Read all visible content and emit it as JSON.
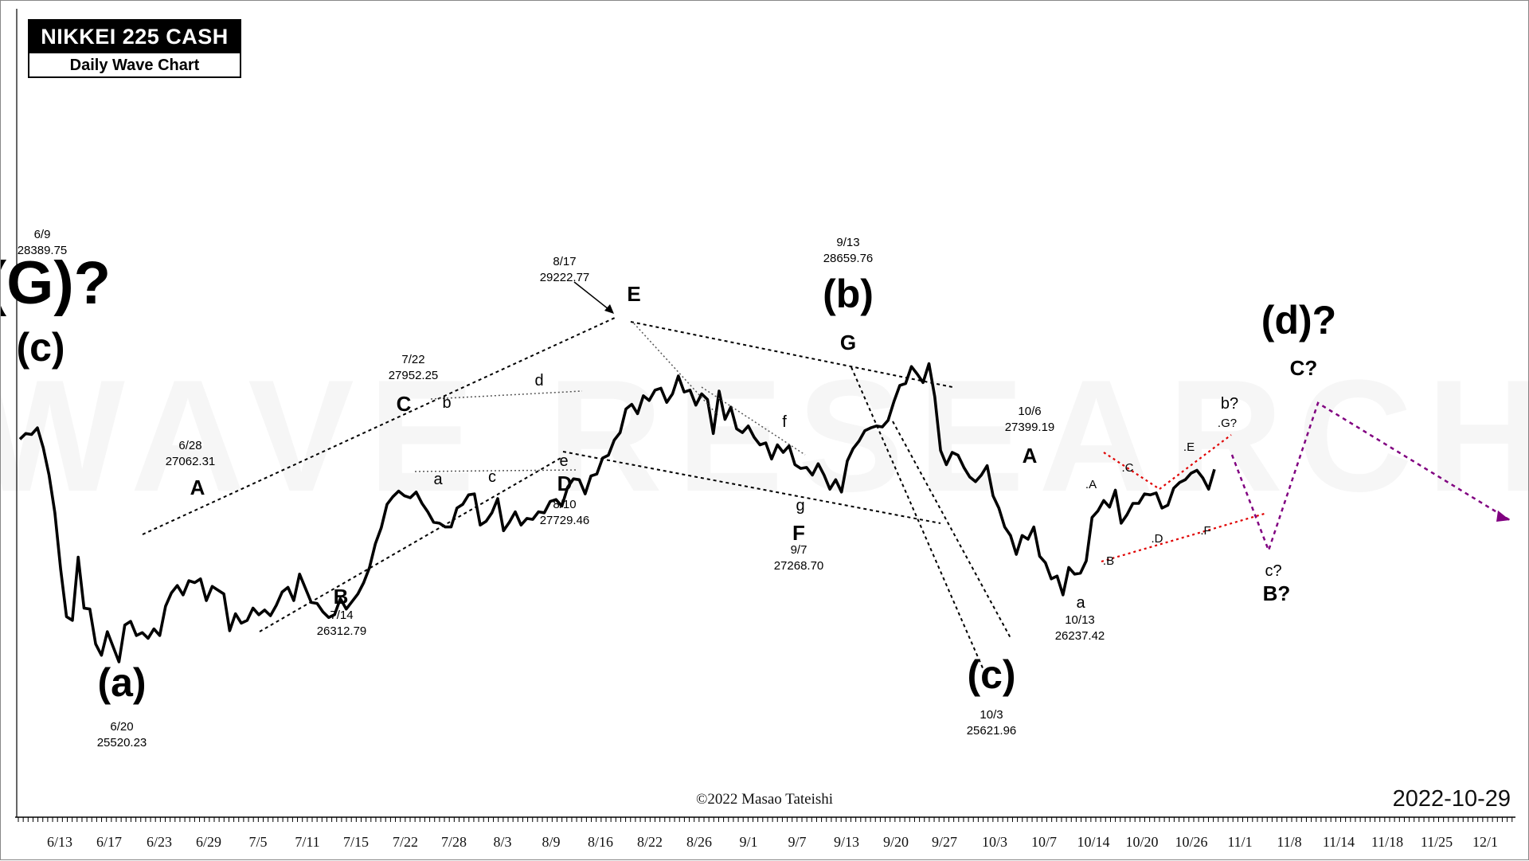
{
  "header": {
    "title": "NIKKEI 225 CASH",
    "subtitle": "Daily Wave Chart"
  },
  "watermark": "WAVE RESEARCH",
  "footer": {
    "copyright": "©2022 Masao Tateishi",
    "date": "2022-10-29"
  },
  "chart_data": {
    "type": "line",
    "title": "NIKKEI 225 CASH",
    "subtitle": "Daily Wave Chart",
    "xlabel": "",
    "ylabel": "",
    "grid": false,
    "x_ticks": [
      "6/13",
      "6/17",
      "6/23",
      "6/29",
      "7/5",
      "7/11",
      "7/15",
      "7/22",
      "7/28",
      "8/3",
      "8/9",
      "8/16",
      "8/22",
      "8/26",
      "9/1",
      "9/7",
      "9/13",
      "9/20",
      "9/27",
      "10/3",
      "10/7",
      "10/14",
      "10/20",
      "10/26",
      "11/1",
      "11/8",
      "11/14",
      "11/18",
      "11/25",
      "12/1"
    ],
    "ylim": [
      24600,
      29650
    ],
    "series": [
      {
        "name": "",
        "color": "#000000",
        "values": [
          27880,
          27940,
          27930,
          28000,
          27790,
          27500,
          27100,
          26500,
          26000,
          25960,
          26630,
          26090,
          26080,
          25710,
          25590,
          25840,
          25680,
          25520,
          25910,
          25950,
          25800,
          25830,
          25770,
          25870,
          25800,
          26110,
          26250,
          26330,
          26230,
          26380,
          26360,
          26400,
          26170,
          26320,
          26280,
          26240,
          25850,
          26030,
          25930,
          25960,
          26090,
          26020,
          26070,
          26010,
          26120,
          26260,
          26310,
          26170,
          26450,
          26300,
          26150,
          26140,
          26050,
          25990,
          26020,
          26190,
          26080,
          26160,
          26240,
          26360,
          26520,
          26770,
          26940,
          27190,
          27270,
          27330,
          27280,
          27260,
          27320,
          27200,
          27110,
          27000,
          26990,
          26950,
          26950,
          27150,
          27190,
          27290,
          27300,
          26970,
          27010,
          27100,
          27250,
          26910,
          27000,
          27110,
          26970,
          27040,
          27030,
          27110,
          27100,
          27220,
          27240,
          27170,
          27370,
          27460,
          27450,
          27300,
          27490,
          27510,
          27680,
          27710,
          27870,
          27950,
          28200,
          28250,
          28150,
          28340,
          28290,
          28400,
          28420,
          28270,
          28360,
          28550,
          28380,
          28400,
          28240,
          28360,
          28300,
          27940,
          28390,
          28090,
          28220,
          27990,
          27950,
          28020,
          27900,
          27820,
          27840,
          27670,
          27820,
          27740,
          27810,
          27610,
          27570,
          27580,
          27500,
          27620,
          27500,
          27350,
          27450,
          27320,
          27650,
          27780,
          27860,
          27970,
          28000,
          28020,
          28010,
          28080,
          28280,
          28450,
          28470,
          28650,
          28570,
          28480,
          28680,
          28330,
          27760,
          27610,
          27740,
          27710,
          27580,
          27480,
          27430,
          27500,
          27600,
          27280,
          27150,
          26950,
          26860,
          26660,
          26860,
          26820,
          26950,
          26640,
          26570,
          26400,
          26430,
          26230,
          26520,
          26450,
          26460,
          26590,
          27050,
          27120,
          27230,
          27160,
          27340,
          26990,
          27080,
          27200,
          27200,
          27300,
          27290,
          27310,
          27150,
          27180,
          27360,
          27420,
          27450,
          27520,
          27550,
          27470,
          27350,
          27560
        ]
      }
    ],
    "annotations": [
      {
        "label": "(G)?",
        "size": "xl"
      },
      {
        "label": "(c)",
        "size": "lg"
      },
      {
        "date": "6/9",
        "value": "28389.75"
      },
      {
        "label": "(a)",
        "size": "lg"
      },
      {
        "date": "6/20",
        "value": "25520.23"
      },
      {
        "label": "A"
      },
      {
        "date": "6/28",
        "value": "27062.31"
      },
      {
        "label": "B"
      },
      {
        "date": "7/14",
        "value": "26312.79"
      },
      {
        "label": "C"
      },
      {
        "date": "7/22",
        "value": "27952.25"
      },
      {
        "label": "D"
      },
      {
        "date": "8/10",
        "value": "27729.46"
      },
      {
        "label": "E"
      },
      {
        "date": "8/17",
        "value": "29222.77"
      },
      {
        "label": "F"
      },
      {
        "date": "9/7",
        "value": "27268.70"
      },
      {
        "label": "(b)",
        "size": "lg"
      },
      {
        "label": "G"
      },
      {
        "date": "9/13",
        "value": "28659.76"
      },
      {
        "label": "(c)",
        "size": "lg"
      },
      {
        "date": "10/3",
        "value": "25621.96"
      },
      {
        "label": "A"
      },
      {
        "date": "10/6",
        "value": "27399.19"
      },
      {
        "label": "a"
      },
      {
        "date": "10/13",
        "value": "26237.42"
      },
      {
        "label": "(d)?",
        "size": "lg"
      },
      {
        "label": "C?"
      },
      {
        "label": "b?"
      },
      {
        "label": "c?"
      },
      {
        "label": "B?"
      },
      {
        "label": ".G?"
      },
      {
        "label": ".A"
      },
      {
        "label": ".B"
      },
      {
        "label": ".C"
      },
      {
        "label": ".D"
      },
      {
        "label": ".E"
      },
      {
        "label": ".F"
      },
      {
        "label": "a"
      },
      {
        "label": "b"
      },
      {
        "label": "c"
      },
      {
        "label": "d"
      },
      {
        "label": "e"
      },
      {
        "label": "f"
      },
      {
        "label": "g"
      }
    ]
  }
}
